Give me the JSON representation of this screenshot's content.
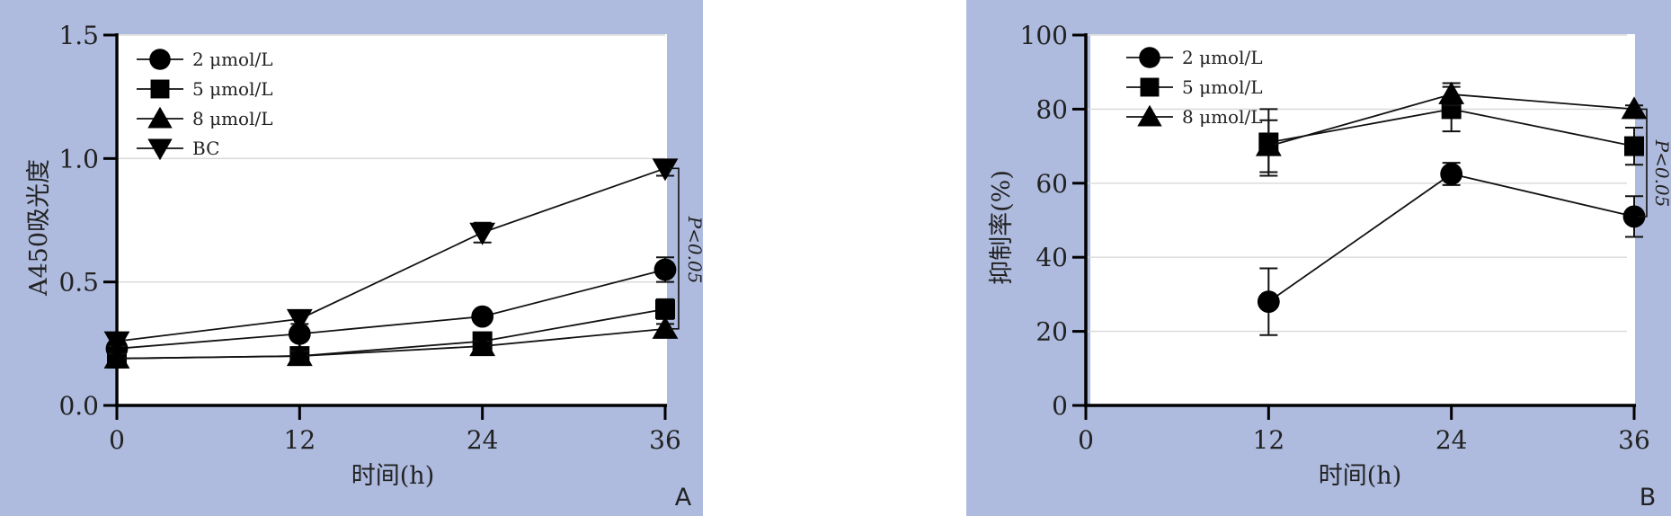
{
  "chart_data": [
    {
      "panel": "A",
      "type": "line",
      "xlabel": "时间(h)",
      "ylabel": "A450吸光度",
      "xlim": [
        0,
        36
      ],
      "ylim": [
        0,
        1.5
      ],
      "xticks": [
        0,
        12,
        24,
        36
      ],
      "yticks": [
        0.0,
        0.5,
        1.0,
        1.5
      ],
      "ytick_labels": [
        "0.0",
        "0.5",
        "1.0",
        "1.5"
      ],
      "grid": "horizontal",
      "legend_position": "top-left",
      "annotation": "P<0.05",
      "x": [
        0,
        12,
        24,
        36
      ],
      "series": [
        {
          "name": "2 μmol/L",
          "marker": "circle",
          "values": [
            0.23,
            0.29,
            0.36,
            0.55
          ],
          "errors": [
            0.02,
            0.02,
            0.02,
            0.05
          ]
        },
        {
          "name": "5 μmol/L",
          "marker": "square",
          "values": [
            0.19,
            0.2,
            0.26,
            0.39
          ],
          "errors": [
            0.02,
            0.02,
            0.02,
            0.04
          ]
        },
        {
          "name": "8 μmol/L",
          "marker": "triangle-up",
          "values": [
            0.19,
            0.2,
            0.24,
            0.31
          ],
          "errors": [
            0.02,
            0.02,
            0.02,
            0.02
          ]
        },
        {
          "name": "BC",
          "marker": "triangle-down",
          "values": [
            0.26,
            0.35,
            0.7,
            0.96
          ],
          "errors": [
            0.02,
            0.02,
            0.04,
            0.03
          ]
        }
      ]
    },
    {
      "panel": "B",
      "type": "line",
      "xlabel": "时间(h)",
      "ylabel": "抑制率(%)",
      "xlim": [
        0,
        36
      ],
      "ylim": [
        0,
        100
      ],
      "xticks": [
        0,
        12,
        24,
        36
      ],
      "yticks": [
        0,
        20,
        40,
        60,
        80,
        100
      ],
      "ytick_labels": [
        "0",
        "20",
        "40",
        "60",
        "80",
        "100"
      ],
      "grid": "horizontal",
      "legend_position": "top-left",
      "annotation": "P<0.05",
      "x": [
        12,
        24,
        36
      ],
      "series": [
        {
          "name": "2 μmol/L",
          "marker": "circle",
          "values": [
            28,
            62.5,
            51
          ],
          "errors": [
            9,
            3,
            5.5
          ]
        },
        {
          "name": "5 μmol/L",
          "marker": "square",
          "values": [
            71,
            80,
            70
          ],
          "errors": [
            9,
            6,
            5
          ]
        },
        {
          "name": "8 μmol/L",
          "marker": "triangle-up",
          "values": [
            70,
            84,
            80
          ],
          "errors": [
            7,
            3,
            1
          ]
        }
      ]
    }
  ]
}
